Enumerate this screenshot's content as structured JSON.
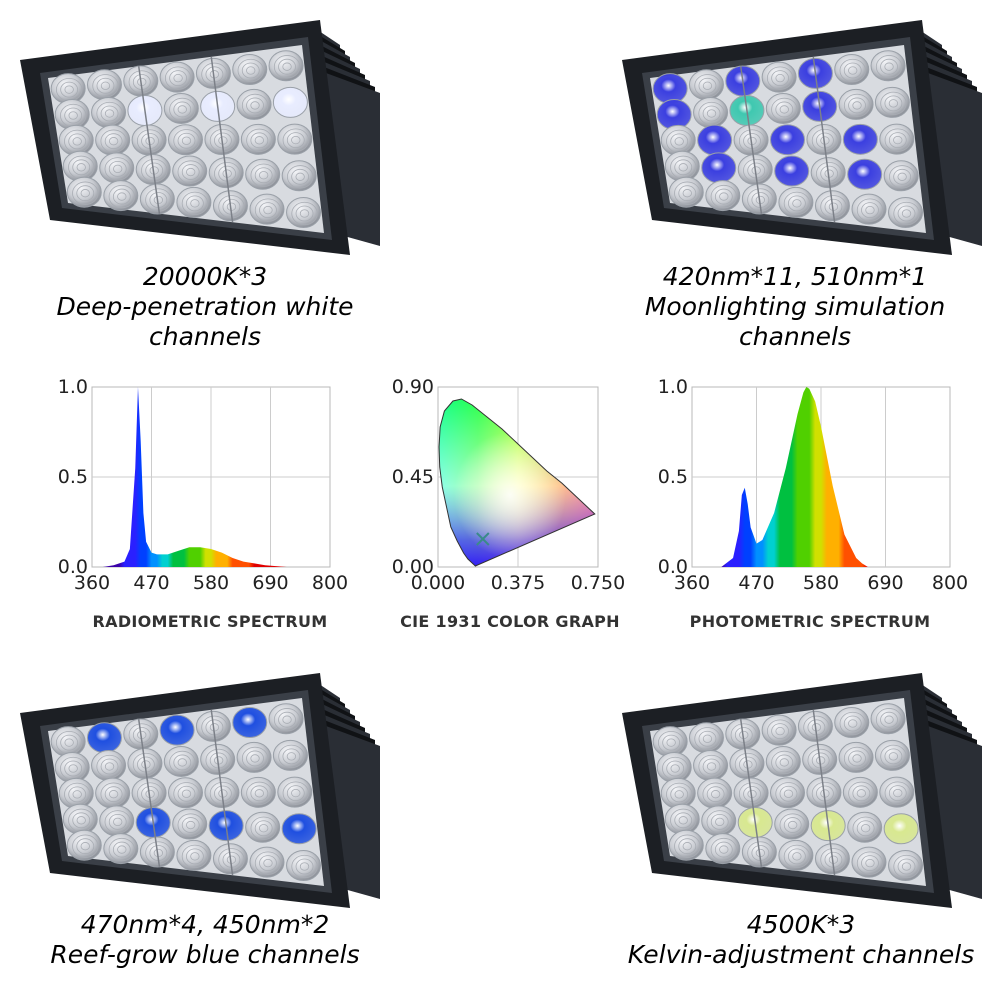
{
  "panels": [
    {
      "caption_line1": "20000K*3",
      "caption_line2": "Deep-penetration white channels",
      "lit": "white-top"
    },
    {
      "caption_line1": "420nm*11, 510nm*1",
      "caption_line2": "Moonlighting simulation channels",
      "lit": "moon"
    },
    {
      "caption_line1": "470nm*4, 450nm*2",
      "caption_line2": "Reef-grow blue channels",
      "lit": "blue"
    },
    {
      "caption_line1": "4500K*3",
      "caption_line2": "Kelvin-adjustment channels",
      "lit": "kelvin"
    }
  ],
  "colors": {
    "housing": "#1c1f24",
    "reflector": "#c9ccd2",
    "white_led": "#e8ecff",
    "violet_led": "#3b3fe0",
    "royal_blue_led": "#1f4fe0",
    "cyan_led": "#3fc8b0",
    "kelvin_led": "#d8e890"
  },
  "chart_data": [
    {
      "type": "area",
      "title": "RADIOMETRIC SPECTRUM",
      "x_ticks": [
        "360",
        "470",
        "580",
        "690",
        "800"
      ],
      "y_ticks": [
        "0.0",
        "0.5",
        "1.0"
      ],
      "xlim": [
        360,
        800
      ],
      "ylim": [
        0,
        1.0
      ],
      "grid": true,
      "x": [
        380,
        400,
        420,
        430,
        440,
        445,
        450,
        455,
        460,
        470,
        480,
        500,
        520,
        540,
        560,
        580,
        600,
        620,
        640,
        660,
        680,
        700,
        720
      ],
      "y": [
        0.0,
        0.01,
        0.03,
        0.1,
        0.55,
        1.0,
        0.7,
        0.3,
        0.14,
        0.08,
        0.07,
        0.07,
        0.09,
        0.11,
        0.11,
        0.1,
        0.08,
        0.05,
        0.03,
        0.02,
        0.01,
        0.005,
        0.0
      ]
    },
    {
      "type": "scatter",
      "title": "CIE 1931 COLOR GRAPH",
      "x_ticks": [
        "0.000",
        "0.375",
        "0.750"
      ],
      "y_ticks": [
        "0.00",
        "0.45",
        "0.90"
      ],
      "xlim": [
        0,
        0.75
      ],
      "ylim": [
        0,
        0.9
      ],
      "grid": true,
      "marker": {
        "x": 0.21,
        "y": 0.14
      }
    },
    {
      "type": "area",
      "title": "PHOTOMETRIC SPECTRUM",
      "x_ticks": [
        "360",
        "470",
        "580",
        "690",
        "800"
      ],
      "y_ticks": [
        "0.0",
        "0.5",
        "1.0"
      ],
      "xlim": [
        360,
        800
      ],
      "ylim": [
        0,
        1.0
      ],
      "grid": true,
      "x": [
        410,
        430,
        440,
        445,
        450,
        455,
        460,
        470,
        480,
        500,
        520,
        540,
        550,
        555,
        560,
        570,
        580,
        600,
        620,
        640,
        650,
        660
      ],
      "y": [
        0.0,
        0.05,
        0.2,
        0.4,
        0.44,
        0.35,
        0.22,
        0.13,
        0.15,
        0.3,
        0.55,
        0.85,
        0.97,
        1.0,
        0.99,
        0.92,
        0.78,
        0.45,
        0.18,
        0.05,
        0.02,
        0.0
      ]
    }
  ]
}
